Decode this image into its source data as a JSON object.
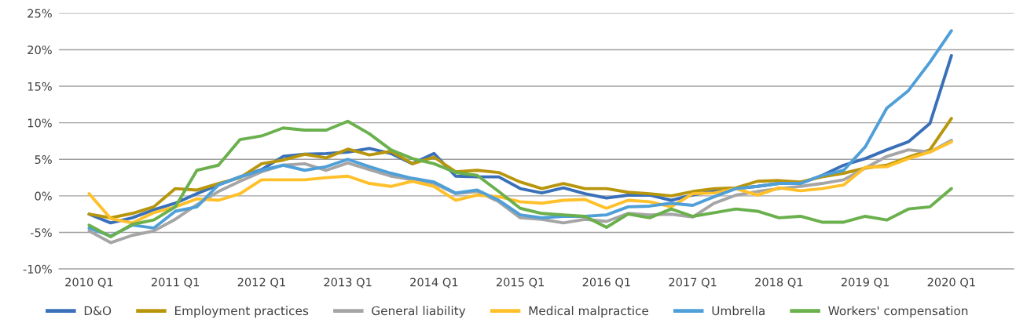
{
  "chart_data": {
    "type": "line",
    "categories": [
      "2010 Q1",
      null,
      null,
      null,
      "2011 Q1",
      null,
      null,
      null,
      "2012 Q1",
      null,
      null,
      null,
      "2013 Q1",
      null,
      null,
      null,
      "2014 Q1",
      null,
      null,
      null,
      "2015 Q1",
      null,
      null,
      null,
      "2016 Q1",
      null,
      null,
      null,
      "2017 Q1",
      null,
      null,
      null,
      "2018 Q1",
      null,
      null,
      null,
      "2019 Q1",
      null,
      null,
      null,
      "2020 Q1"
    ],
    "series": [
      {
        "name": "D&O",
        "color": "#3a70b9",
        "values": [
          -2.5,
          -3.7,
          -3.0,
          -1.9,
          -1.0,
          0.3,
          1.5,
          2.6,
          3.6,
          5.4,
          5.7,
          5.8,
          6.0,
          6.5,
          5.8,
          4.4,
          5.8,
          2.7,
          2.6,
          2.6,
          1.0,
          0.4,
          1.1,
          0.3,
          -0.3,
          0.1,
          0.1,
          -0.6,
          0.1,
          0.7,
          1.0,
          1.3,
          1.7,
          1.7,
          2.8,
          4.2,
          5.1,
          6.3,
          7.4,
          9.9,
          19.2
        ]
      },
      {
        "name": "Employment practices",
        "color": "#b8960c",
        "values": [
          -2.5,
          -3.0,
          -2.4,
          -1.5,
          1.0,
          0.8,
          1.7,
          2.5,
          4.4,
          4.9,
          5.7,
          5.2,
          6.4,
          5.6,
          6.1,
          4.4,
          5.3,
          3.3,
          3.5,
          3.2,
          1.9,
          1.0,
          1.7,
          1.0,
          1.0,
          0.5,
          0.3,
          0.0,
          0.6,
          1.0,
          1.1,
          2.0,
          2.1,
          1.9,
          2.6,
          3.1,
          3.8,
          4.2,
          5.3,
          6.3,
          10.6
        ]
      },
      {
        "name": "General liability",
        "color": "#a5a5a5",
        "values": [
          -4.8,
          -6.4,
          -5.4,
          -4.8,
          -3.2,
          -1.2,
          0.6,
          2.0,
          3.3,
          4.2,
          4.4,
          3.5,
          4.5,
          3.6,
          2.7,
          2.2,
          1.7,
          0.3,
          0.6,
          -0.8,
          -3.0,
          -3.2,
          -3.7,
          -3.2,
          -3.5,
          -2.4,
          -2.6,
          -2.5,
          -2.9,
          -1.0,
          0.1,
          0.6,
          1.0,
          1.3,
          1.7,
          2.2,
          3.8,
          5.4,
          6.3,
          6.0,
          7.6
        ]
      },
      {
        "name": "Medical malpractice",
        "color": "#ffc02a",
        "values": [
          0.3,
          -3.1,
          -3.7,
          -2.3,
          -1.5,
          -0.4,
          -0.6,
          0.3,
          2.2,
          2.2,
          2.2,
          2.5,
          2.7,
          1.7,
          1.3,
          2.0,
          1.3,
          -0.6,
          0.1,
          -0.1,
          -0.8,
          -1.0,
          -0.6,
          -0.5,
          -1.7,
          -0.6,
          -0.8,
          -1.5,
          0.3,
          0.4,
          1.0,
          0.1,
          1.1,
          0.7,
          1.0,
          1.5,
          3.9,
          4.0,
          5.1,
          6.0,
          7.4
        ]
      },
      {
        "name": "Umbrella",
        "color": "#4f9fd8",
        "values": [
          -4.4,
          -5.5,
          -4.0,
          -4.4,
          -2.1,
          -1.5,
          1.5,
          2.6,
          3.5,
          4.2,
          3.5,
          4.0,
          5.0,
          4.0,
          3.1,
          2.4,
          1.9,
          0.4,
          0.8,
          -0.6,
          -2.6,
          -3.0,
          -2.8,
          -2.8,
          -2.6,
          -1.5,
          -1.4,
          -1.0,
          -1.3,
          -0.1,
          1.0,
          1.3,
          1.7,
          1.7,
          2.8,
          3.5,
          6.7,
          12.0,
          14.4,
          18.3,
          22.6
        ]
      },
      {
        "name": "Workers' compensation",
        "color": "#6ab04c",
        "values": [
          -4.0,
          -5.6,
          -3.9,
          -3.3,
          -1.5,
          3.5,
          4.2,
          7.7,
          8.2,
          9.3,
          9.0,
          9.0,
          10.2,
          8.5,
          6.3,
          5.1,
          4.4,
          3.2,
          2.8,
          0.6,
          -1.7,
          -2.4,
          -2.6,
          -2.8,
          -4.3,
          -2.5,
          -3.0,
          -1.8,
          -2.8,
          -2.3,
          -1.8,
          -2.1,
          -3.0,
          -2.8,
          -3.6,
          -3.6,
          -2.8,
          -3.3,
          -1.8,
          -1.5,
          1.0
        ]
      }
    ],
    "ylim": [
      -10,
      25
    ],
    "yticks": [
      {
        "value": -10,
        "label": "-10%"
      },
      {
        "value": -5,
        "label": "-5%"
      },
      {
        "value": 0,
        "label": "0%"
      },
      {
        "value": 5,
        "label": "5%"
      },
      {
        "value": 10,
        "label": "10%"
      },
      {
        "value": 15,
        "label": "15%"
      },
      {
        "value": 20,
        "label": "20%"
      },
      {
        "value": 25,
        "label": "25%"
      }
    ],
    "grid": "y",
    "legend": "bottom",
    "marker": "none",
    "line_style": "solid"
  }
}
